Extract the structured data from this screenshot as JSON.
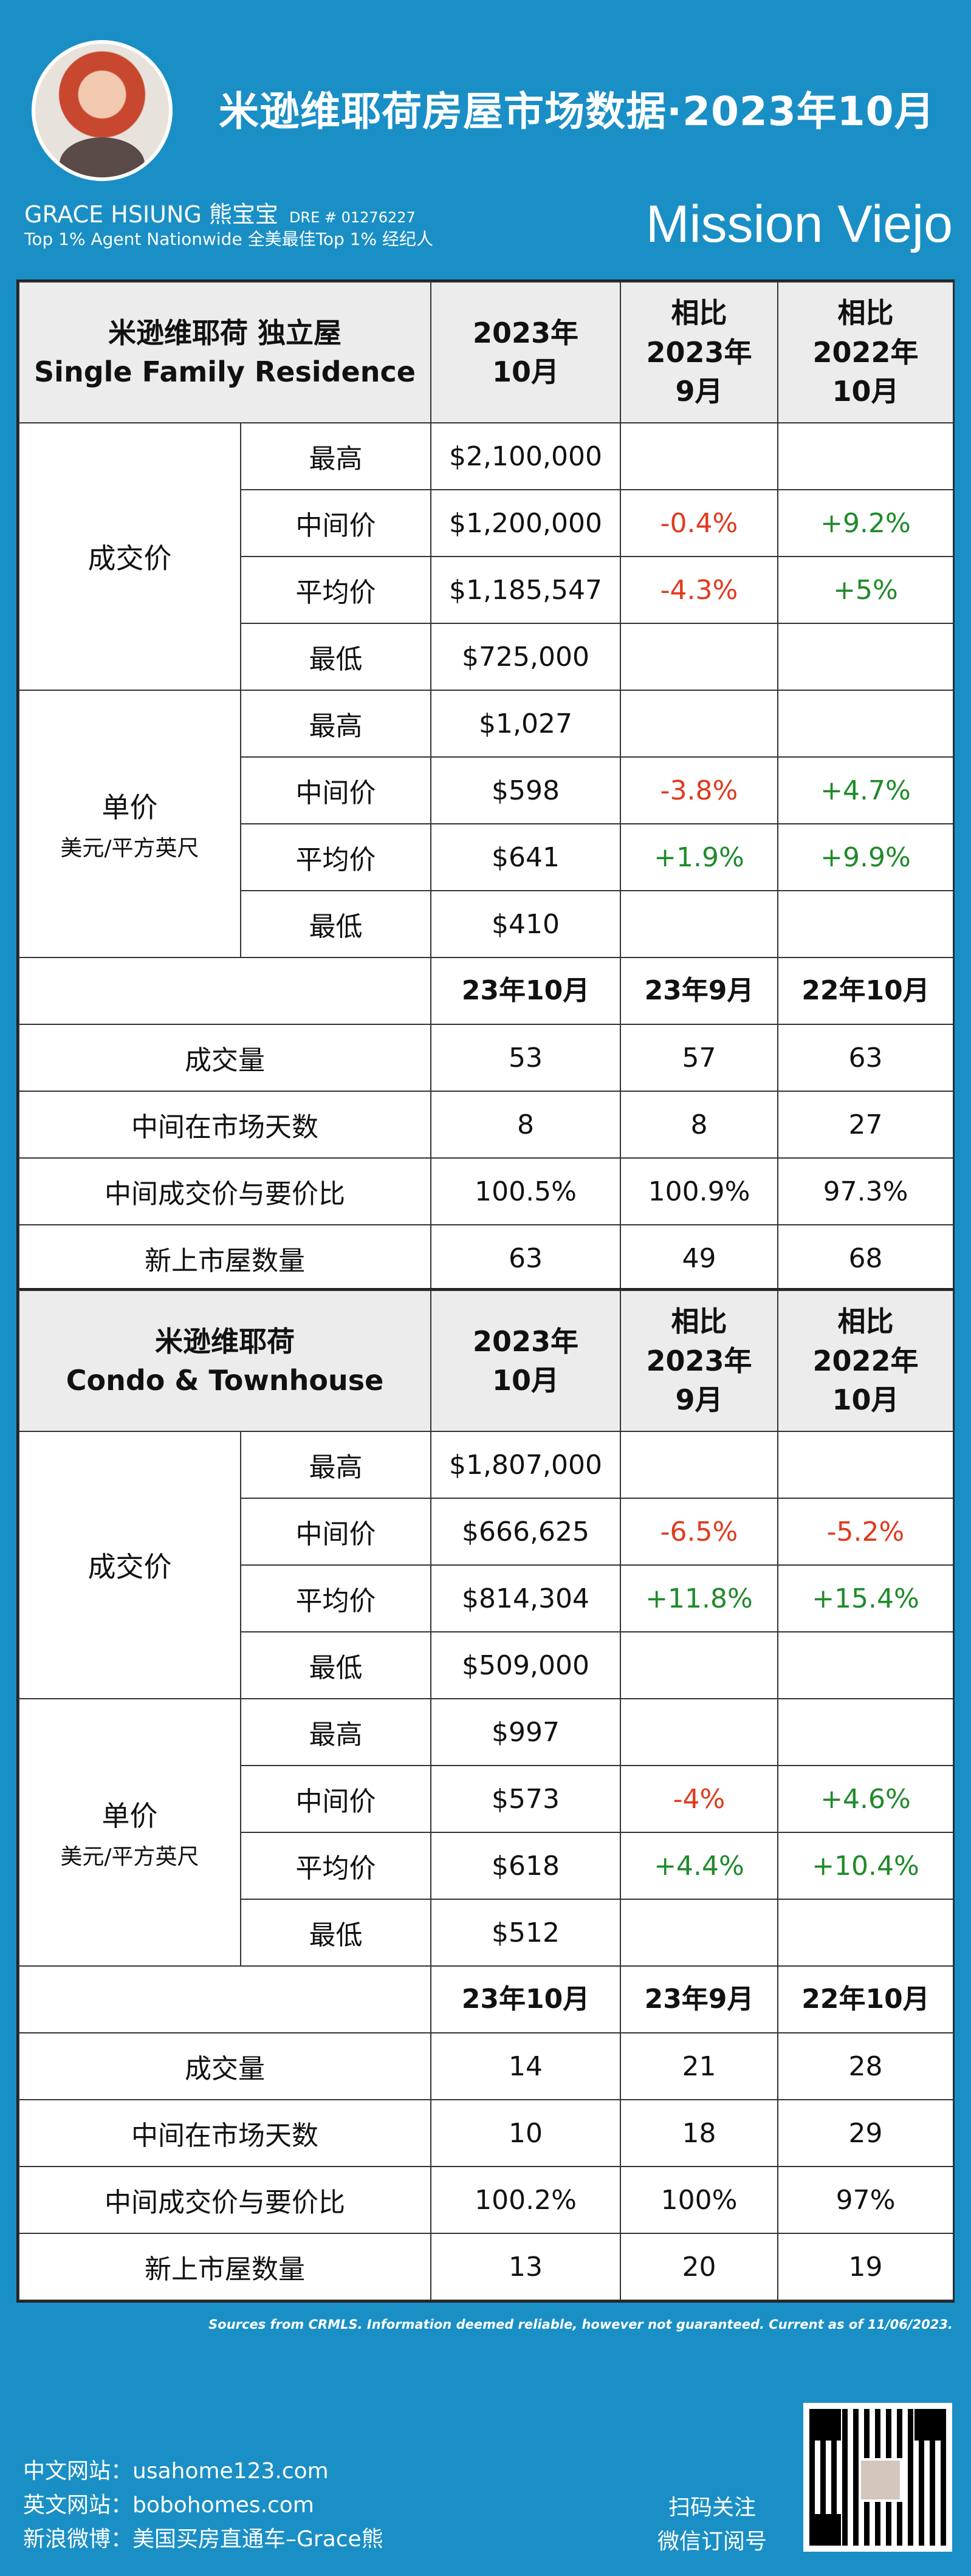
{
  "header": {
    "title": "米逊维耶荷房屋市场数据·2023年10月",
    "agent_name": "GRACE HSIUNG 熊宝宝",
    "dre": "DRE # 01276227",
    "tagline": "Top 1% Agent Nationwide  全美最佳Top 1% 经纪人",
    "city": "Mission Viejo"
  },
  "table1": {
    "head": {
      "type_cn": "米逊维耶荷  独立屋",
      "type_en": "Single Family Residence",
      "col1": "2023年\n10月",
      "col2": "相比\n2023年\n9月",
      "col3": "相比\n2022年\n10月"
    },
    "price_group": "成交价",
    "price_rows": [
      {
        "label": "最高",
        "value": "$2,100,000",
        "mom": "",
        "yoy": ""
      },
      {
        "label": "中间价",
        "value": "$1,200,000",
        "mom": "-0.4%",
        "yoy": "+9.2%"
      },
      {
        "label": "平均价",
        "value": "$1,185,547",
        "mom": "-4.3%",
        "yoy": "+5%"
      },
      {
        "label": "最低",
        "value": "$725,000",
        "mom": "",
        "yoy": ""
      }
    ],
    "unit_group": "单价",
    "unit_group_sub": "美元/平方英尺",
    "unit_rows": [
      {
        "label": "最高",
        "value": "$1,027",
        "mom": "",
        "yoy": ""
      },
      {
        "label": "中间价",
        "value": "$598",
        "mom": "-3.8%",
        "yoy": "+4.7%"
      },
      {
        "label": "平均价",
        "value": "$641",
        "mom": "+1.9%",
        "yoy": "+9.9%"
      },
      {
        "label": "最低",
        "value": "$410",
        "mom": "",
        "yoy": ""
      }
    ],
    "stats_head": [
      "23年10月",
      "23年9月",
      "22年10月"
    ],
    "stats_rows": [
      {
        "label": "成交量",
        "v1": "53",
        "v2": "57",
        "v3": "63"
      },
      {
        "label": "中间在市场天数",
        "v1": "8",
        "v2": "8",
        "v3": "27"
      },
      {
        "label": "中间成交价与要价比",
        "v1": "100.5%",
        "v2": "100.9%",
        "v3": "97.3%"
      },
      {
        "label": "新上市屋数量",
        "v1": "63",
        "v2": "49",
        "v3": "68"
      }
    ]
  },
  "table2": {
    "head": {
      "type_cn": "米逊维耶荷",
      "type_en": "Condo & Townhouse",
      "col1": "2023年\n10月",
      "col2": "相比\n2023年\n9月",
      "col3": "相比\n2022年\n10月"
    },
    "price_group": "成交价",
    "price_rows": [
      {
        "label": "最高",
        "value": "$1,807,000",
        "mom": "",
        "yoy": ""
      },
      {
        "label": "中间价",
        "value": "$666,625",
        "mom": "-6.5%",
        "yoy": "-5.2%"
      },
      {
        "label": "平均价",
        "value": "$814,304",
        "mom": "+11.8%",
        "yoy": "+15.4%"
      },
      {
        "label": "最低",
        "value": "$509,000",
        "mom": "",
        "yoy": ""
      }
    ],
    "unit_group": "单价",
    "unit_group_sub": "美元/平方英尺",
    "unit_rows": [
      {
        "label": "最高",
        "value": "$997",
        "mom": "",
        "yoy": ""
      },
      {
        "label": "中间价",
        "value": "$573",
        "mom": "-4%",
        "yoy": "+4.6%"
      },
      {
        "label": "平均价",
        "value": "$618",
        "mom": "+4.4%",
        "yoy": "+10.4%"
      },
      {
        "label": "最低",
        "value": "$512",
        "mom": "",
        "yoy": ""
      }
    ],
    "stats_head": [
      "23年10月",
      "23年9月",
      "22年10月"
    ],
    "stats_rows": [
      {
        "label": "成交量",
        "v1": "14",
        "v2": "21",
        "v3": "28"
      },
      {
        "label": "中间在市场天数",
        "v1": "10",
        "v2": "18",
        "v3": "29"
      },
      {
        "label": "中间成交价与要价比",
        "v1": "100.2%",
        "v2": "100%",
        "v3": "97%"
      },
      {
        "label": "新上市屋数量",
        "v1": "13",
        "v2": "20",
        "v3": "19"
      }
    ]
  },
  "footer": {
    "sources": "Sources from CRMLS. Information deemed reliable, however not guaranteed. Current as of 11/06/2023.",
    "links": [
      "中文网站：usahome123.com",
      "英文网站：bobohomes.com",
      "新浪微博：美国买房直通车–Grace熊"
    ],
    "scan_line1": "扫码关注",
    "scan_line2": "微信订阅号"
  },
  "colors": {
    "background": "#1a8fc6",
    "negative": "#e03a1e",
    "positive": "#1f8a2a",
    "header_fill": "#ececec"
  }
}
